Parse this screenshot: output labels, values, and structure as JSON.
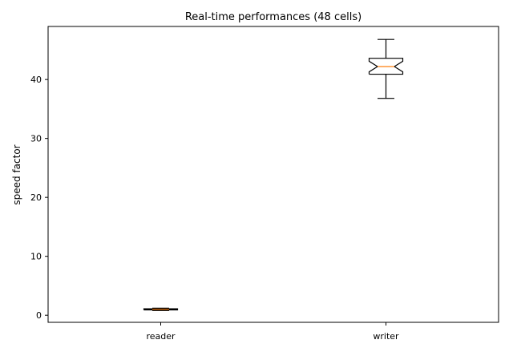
{
  "chart_data": {
    "type": "box",
    "title": "Real-time performances (48 cells)",
    "xlabel": "",
    "ylabel": "speed factor",
    "categories": [
      "reader",
      "writer"
    ],
    "ylim": [
      -1.2,
      49
    ],
    "yticks": [
      0,
      10,
      20,
      30,
      40
    ],
    "boxes": [
      {
        "name": "reader",
        "whislo": 0.8,
        "q1": 0.9,
        "med": 1.0,
        "notchlo": 0.95,
        "notchhi": 1.05,
        "q3": 1.1,
        "whishi": 1.2
      },
      {
        "name": "writer",
        "whislo": 36.8,
        "q1": 40.9,
        "med": 42.2,
        "notchlo": 41.3,
        "notchhi": 43.1,
        "q3": 43.6,
        "whishi": 46.8
      }
    ],
    "grid": false,
    "colors": {
      "box": "#000000",
      "median": "#ff7f0e",
      "axis": "#000000"
    }
  }
}
